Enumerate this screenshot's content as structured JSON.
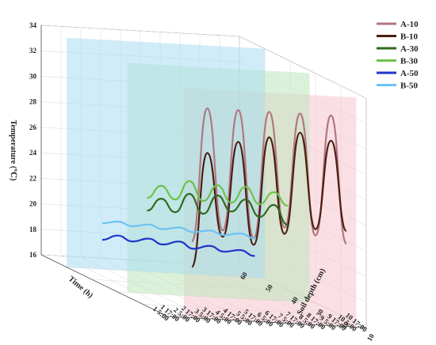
{
  "chart_data": {
    "type": "line",
    "projection": "3d",
    "ylabel": "Temperature (℃)",
    "xlabel": "Time (h)",
    "zlabel": "Soil depth (cm)",
    "ylim": [
      16,
      34
    ],
    "y_ticks": [
      "16",
      "18",
      "20",
      "22",
      "24",
      "26",
      "28",
      "30",
      "32",
      "34"
    ],
    "x_ticks": [
      "1 5:00",
      "1 17:00",
      "2 5:00",
      "2 17:00",
      "3 5:00",
      "3 17:00",
      "4 5:00",
      "4 17:00",
      "5 5:00",
      "5 17:00",
      "6 5:00",
      "6 17:00",
      "7 5:00",
      "7 17:00",
      "8 5:00",
      "8 17:00",
      "9 5:00",
      "9 17:00",
      "10 5:00",
      "10 17:00"
    ],
    "z_ticks": [
      "60",
      "50",
      "40",
      "30",
      "20",
      "10"
    ],
    "grid": true,
    "legend": "top-right",
    "series": [
      {
        "name": "A-10",
        "color": "#b07880",
        "depth": 10,
        "values": [
          22,
          32.5,
          23,
          32.5,
          22.5,
          32.5,
          23.5,
          32.5,
          23,
          32.5,
          22.5
        ]
      },
      {
        "name": "B-10",
        "color": "#4a1f14",
        "depth": 10,
        "values": [
          20,
          29,
          22.5,
          30,
          22,
          30.5,
          23,
          31,
          23.5,
          30.5,
          23.5
        ]
      },
      {
        "name": "A-30",
        "color": "#2f6b1f",
        "depth": 30,
        "values": [
          22.5,
          23.5,
          22.5,
          24,
          22.5,
          24,
          22.8,
          23.8,
          22.5,
          23.5,
          22
        ]
      },
      {
        "name": "B-30",
        "color": "#6cc24a",
        "depth": 30,
        "values": [
          23.5,
          24.5,
          23.5,
          25,
          23.5,
          24.8,
          23.5,
          24.8,
          23.5,
          24.5,
          23.5
        ]
      },
      {
        "name": "A-50",
        "color": "#1f36c9",
        "depth": 50,
        "values": [
          18.3,
          18.7,
          18.3,
          18.6,
          18.2,
          18.5,
          18,
          18.3,
          17.9,
          18.1,
          17.7
        ]
      },
      {
        "name": "B-50",
        "color": "#6cc2f2",
        "depth": 50,
        "values": [
          19.6,
          19.8,
          19.5,
          19.7,
          19.4,
          19.6,
          19.3,
          19.5,
          19.2,
          19.4,
          19.1
        ]
      }
    ]
  }
}
